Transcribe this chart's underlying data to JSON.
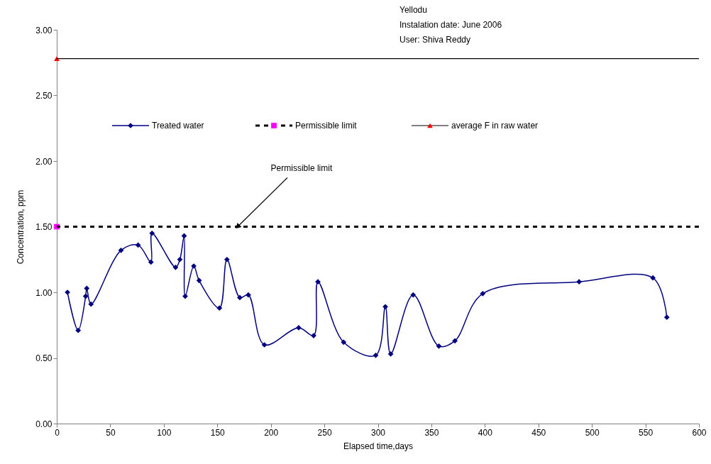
{
  "chart_data": {
    "type": "line",
    "xlabel": "Elapsed time,days",
    "ylabel": "Concentration, ppm",
    "xlim": [
      0,
      600
    ],
    "xticks": [
      0,
      50,
      100,
      150,
      200,
      250,
      300,
      350,
      400,
      450,
      500,
      550,
      600
    ],
    "ylim": [
      0,
      3
    ],
    "yticks": [
      {
        "value": 0,
        "label": "0.00"
      },
      {
        "value": 0.5,
        "label": "0.50"
      },
      {
        "value": 1,
        "label": "1.00"
      },
      {
        "value": 1.5,
        "label": "1.50"
      },
      {
        "value": 2,
        "label": "2.00"
      },
      {
        "value": 2.5,
        "label": "2.50"
      },
      {
        "value": 3,
        "label": "3.00"
      }
    ],
    "grid": false,
    "legend": "top",
    "series": [
      {
        "name": "Treated water",
        "color": "#000080",
        "marker": "diamond",
        "x": [
          10,
          20,
          27,
          28,
          32,
          60,
          76,
          88,
          89,
          111,
          115,
          119,
          120,
          128,
          133,
          152,
          159,
          171,
          179,
          194,
          226,
          240,
          244,
          268,
          298,
          307,
          312,
          333,
          357,
          372,
          398,
          488,
          557,
          570
        ],
        "values": [
          1.0,
          0.71,
          0.97,
          1.03,
          0.91,
          1.32,
          1.36,
          1.23,
          1.45,
          1.19,
          1.25,
          1.43,
          0.97,
          1.2,
          1.09,
          0.88,
          1.25,
          0.96,
          0.98,
          0.6,
          0.73,
          0.67,
          1.08,
          0.62,
          0.52,
          0.89,
          0.53,
          0.98,
          0.59,
          0.63,
          0.99,
          1.08,
          1.11,
          0.81
        ]
      },
      {
        "name": "Permissible limit",
        "color": "#ff00ff",
        "type": "scatter",
        "marker": "square",
        "x": [
          0
        ],
        "values": [
          1.5
        ]
      },
      {
        "name": "average F in raw water",
        "color": "#ff0000",
        "type": "scatter",
        "marker": "triangle",
        "x": [
          0
        ],
        "values": [
          2.78
        ]
      }
    ],
    "ref_lines": [
      {
        "axis": "y",
        "value": 1.5,
        "color": "#000000",
        "line_style": "dotted"
      },
      {
        "axis": "y",
        "value": 2.78,
        "color": "#000000",
        "line_style": "solid"
      }
    ],
    "annotations": [
      {
        "text": "Permissible limit",
        "x": 169,
        "y": 1.5
      },
      "Yellodu",
      "Instalation date: June 2006",
      "User: Shiva Reddy"
    ]
  }
}
